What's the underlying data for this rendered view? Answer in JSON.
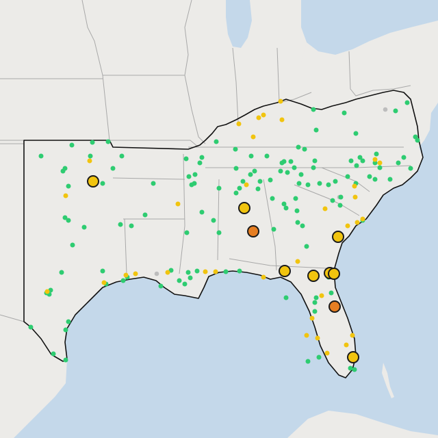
{
  "map": {
    "colors": {
      "water": "#c4d8ea",
      "land": "#ecebe8",
      "state_border": "#a8a8a8",
      "region_outline": "#111111",
      "marker_green": "#2ecc71",
      "marker_yellow": "#f1c40f",
      "marker_orange": "#e67e22",
      "marker_gray": "#bdbdbd",
      "marker_outline": "#1a1a1a"
    },
    "marker_categories": [
      "green",
      "yellow",
      "orange",
      "gray"
    ]
  }
}
